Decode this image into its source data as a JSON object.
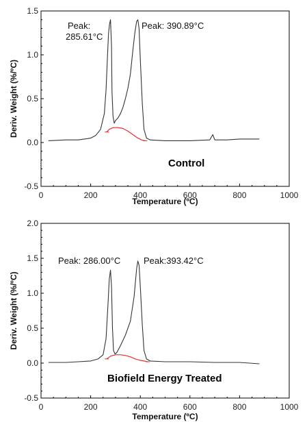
{
  "chart_data": [
    {
      "type": "line",
      "label": "Control",
      "xlabel": "Temperature (ºC)",
      "ylabel": "Deriv. Weight (%/ºC)",
      "xlim": [
        0,
        1000
      ],
      "ylim": [
        -0.5,
        1.5
      ],
      "xticks": [
        "0",
        "200",
        "400",
        "600",
        "800",
        "1000"
      ],
      "yticks": [
        "-0.5",
        "0.0",
        "0.5",
        "1.0",
        "1.5"
      ],
      "grid": false,
      "annotations": [
        "Peak:",
        "285.61°C",
        "Peak: 390.89°C"
      ],
      "series": [
        {
          "color": "#333333",
          "x": [
            30,
            100,
            150,
            200,
            220,
            240,
            255,
            262,
            268,
            272,
            276,
            280,
            284,
            286,
            290,
            295,
            300,
            310,
            320,
            330,
            340,
            350,
            360,
            370,
            378,
            385,
            390,
            395,
            400,
            408,
            415,
            425,
            440,
            500,
            600,
            680,
            688,
            692,
            696,
            700,
            750,
            800,
            880
          ],
          "y": [
            0.02,
            0.03,
            0.03,
            0.05,
            0.08,
            0.15,
            0.33,
            0.6,
            1.0,
            1.24,
            1.35,
            1.4,
            1.1,
            0.58,
            0.3,
            0.22,
            0.25,
            0.28,
            0.33,
            0.4,
            0.5,
            0.62,
            0.78,
            1.05,
            1.25,
            1.38,
            1.4,
            1.3,
            0.95,
            0.45,
            0.15,
            0.05,
            0.03,
            0.02,
            0.02,
            0.03,
            0.07,
            0.09,
            0.06,
            0.03,
            0.03,
            0.04,
            0.04
          ]
        },
        {
          "color": "#e03030",
          "x": [
            265,
            275,
            290,
            310,
            330,
            350,
            370,
            390,
            405,
            420
          ],
          "y": [
            0.12,
            0.15,
            0.17,
            0.17,
            0.16,
            0.13,
            0.09,
            0.05,
            0.03,
            0.02
          ]
        }
      ]
    },
    {
      "type": "line",
      "label": "Biofield Energy Treated",
      "xlabel": "Temperature (ºC)",
      "ylabel": "Deriv. Weight (%/ºC)",
      "xlim": [
        0,
        1000
      ],
      "ylim": [
        -0.5,
        2.0
      ],
      "xticks": [
        "0",
        "200",
        "400",
        "600",
        "800",
        "1000"
      ],
      "yticks": [
        "-0.5",
        "0.0",
        "0.5",
        "1.0",
        "1.5",
        "2.0"
      ],
      "grid": false,
      "annotations": [
        "Peak: 286.00°C",
        "Peak:393.42°C"
      ],
      "series": [
        {
          "color": "#333333",
          "x": [
            30,
            100,
            150,
            200,
            230,
            250,
            262,
            270,
            275,
            280,
            284,
            288,
            292,
            298,
            305,
            320,
            340,
            360,
            375,
            385,
            390,
            395,
            400,
            408,
            415,
            425,
            440,
            500,
            600,
            700,
            800,
            880
          ],
          "y": [
            0.01,
            0.01,
            0.02,
            0.03,
            0.06,
            0.12,
            0.35,
            0.85,
            1.2,
            1.33,
            1.1,
            0.5,
            0.18,
            0.13,
            0.15,
            0.25,
            0.4,
            0.6,
            0.95,
            1.35,
            1.46,
            1.4,
            1.1,
            0.55,
            0.18,
            0.06,
            0.03,
            0.02,
            0.02,
            0.01,
            0.01,
            -0.01
          ]
        },
        {
          "color": "#e03030",
          "x": [
            265,
            280,
            300,
            320,
            340,
            360,
            380,
            400,
            415,
            430
          ],
          "y": [
            0.06,
            0.1,
            0.12,
            0.12,
            0.11,
            0.09,
            0.06,
            0.04,
            0.03,
            0.02
          ]
        }
      ]
    }
  ]
}
